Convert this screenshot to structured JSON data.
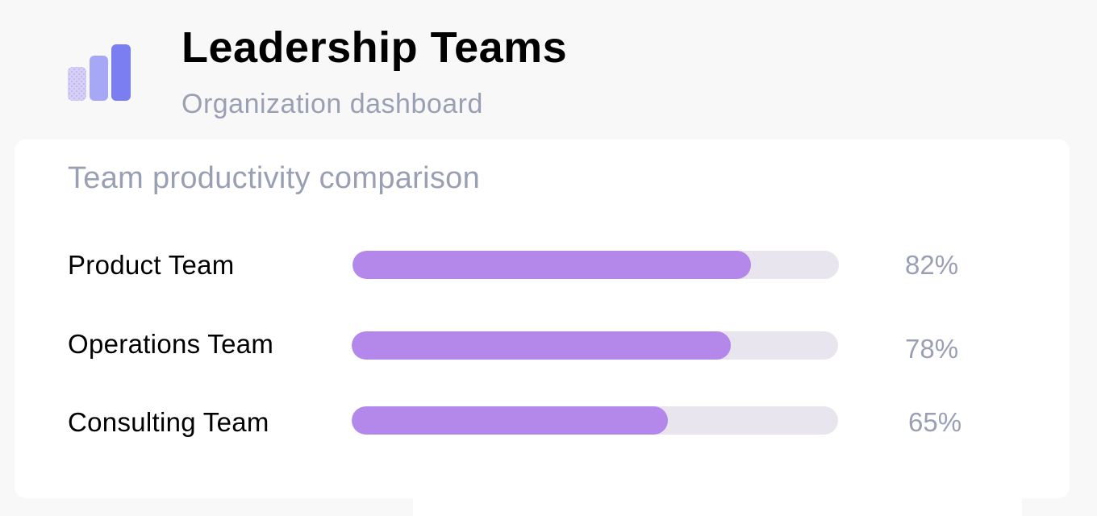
{
  "header": {
    "title": "Leadership Teams",
    "subtitle": "Organization dashboard",
    "logo_icon": "bar-chart-icon"
  },
  "card": {
    "title": "Team productivity comparison",
    "teams": [
      {
        "label": "Product Team",
        "value": 82,
        "value_label": "82%"
      },
      {
        "label": "Operations Team",
        "value": 78,
        "value_label": "78%"
      },
      {
        "label": "Consulting Team",
        "value": 65,
        "value_label": "65%"
      }
    ]
  },
  "colors": {
    "bar_fill": "#b388ea",
    "bar_track": "#e8e5ee",
    "muted_text": "#9aa0b4",
    "logo_light": "#cfc8f5",
    "logo_mid": "#a6a8f5",
    "logo_dark": "#7b7ef0"
  }
}
